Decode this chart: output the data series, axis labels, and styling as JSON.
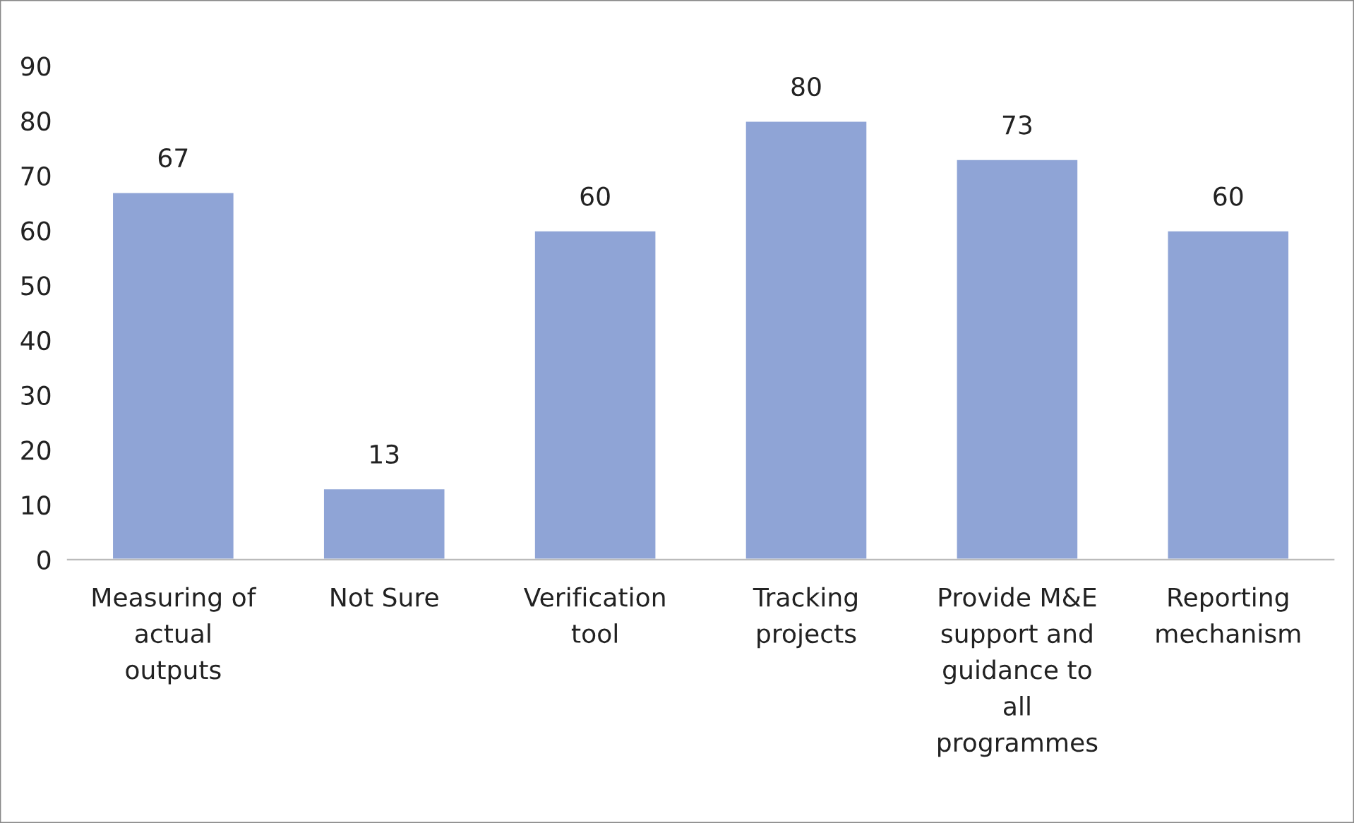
{
  "chart_data": {
    "type": "bar",
    "categories": [
      "Measuring of\nactual\noutputs",
      "Not Sure",
      "Verification\ntool",
      "Tracking\nprojects",
      "Provide M&E\nsupport and\nguidance to\nall\nprogrammes",
      "Reporting\nmechanism"
    ],
    "values": [
      67,
      13,
      60,
      80,
      73,
      60
    ],
    "color": "#8fa4d6",
    "ylim": [
      0,
      90
    ],
    "yticks": [
      0,
      10,
      20,
      30,
      40,
      50,
      60,
      70,
      80,
      90
    ],
    "data_labels": true,
    "grid": false,
    "legend": false
  }
}
